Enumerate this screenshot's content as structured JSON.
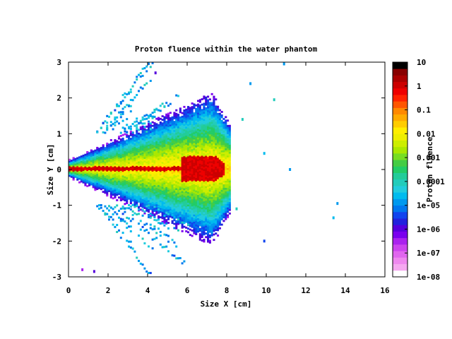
{
  "chart_data": {
    "type": "heatmap",
    "title": "Proton fluence within the water phantom",
    "xlabel": "Size X [cm]",
    "ylabel": "Size Y [cm]",
    "colorbar_label": "Proton fluence",
    "xlim": [
      0,
      16
    ],
    "ylim": [
      -3,
      3
    ],
    "xticks": [
      "0",
      "2",
      "4",
      "6",
      "8",
      "10",
      "12",
      "14",
      "16"
    ],
    "yticks": [
      "-3",
      "-2",
      "-1",
      "0",
      "1",
      "2",
      "3"
    ],
    "colorbar_scale": "log",
    "colorbar_range": [
      1e-08,
      10
    ],
    "colorbar_ticks": [
      "10",
      "1",
      "0.1",
      "0.01",
      "0.001",
      "0.0001",
      "1e-05",
      "1e-06",
      "1e-07",
      "1e-08"
    ],
    "colorscale": [
      "#ffffff",
      "#f5a8f0",
      "#ee88ee",
      "#e066ee",
      "#cc44ee",
      "#aa22ee",
      "#7a00ee",
      "#5500dd",
      "#2222dd",
      "#1144ee",
      "#0077ee",
      "#0099ee",
      "#00bbee",
      "#22ccdd",
      "#22ccbb",
      "#22cc99",
      "#22cc66",
      "#44cc44",
      "#77dd22",
      "#aae800",
      "#ccee00",
      "#eeee00",
      "#ffee00",
      "#ffcc00",
      "#ffaa00",
      "#ff8800",
      "#ff5500",
      "#ff2200",
      "#ee0000",
      "#cc0000",
      "#aa0000",
      "#880000",
      "#000000"
    ],
    "beam": {
      "range_cm": 7.8,
      "peak_fluence": 3,
      "core_fluence": 1,
      "max_half_width_cm": 2.2
    },
    "outliers": [
      {
        "x": 4.4,
        "y": 2.7,
        "fluence": 1e-06
      },
      {
        "x": 9.2,
        "y": 2.4,
        "fluence": 1e-05
      },
      {
        "x": 9.9,
        "y": -2.0,
        "fluence": 3e-06
      },
      {
        "x": 9.9,
        "y": 0.45,
        "fluence": 2e-05
      },
      {
        "x": 13.4,
        "y": -1.35,
        "fluence": 2e-05
      },
      {
        "x": 10.4,
        "y": 1.95,
        "fluence": 0.0001
      },
      {
        "x": 11.2,
        "y": 0.0,
        "fluence": 1e-05
      },
      {
        "x": 8.8,
        "y": 1.4,
        "fluence": 0.0001
      },
      {
        "x": 13.6,
        "y": -0.95,
        "fluence": 1e-05
      },
      {
        "x": 1.3,
        "y": -2.85,
        "fluence": 1e-06
      },
      {
        "x": 0.7,
        "y": -2.8,
        "fluence": 3e-07
      },
      {
        "x": 10.9,
        "y": 2.95,
        "fluence": 1e-05
      },
      {
        "x": 8.5,
        "y": -1.1,
        "fluence": 0.0001
      }
    ]
  }
}
